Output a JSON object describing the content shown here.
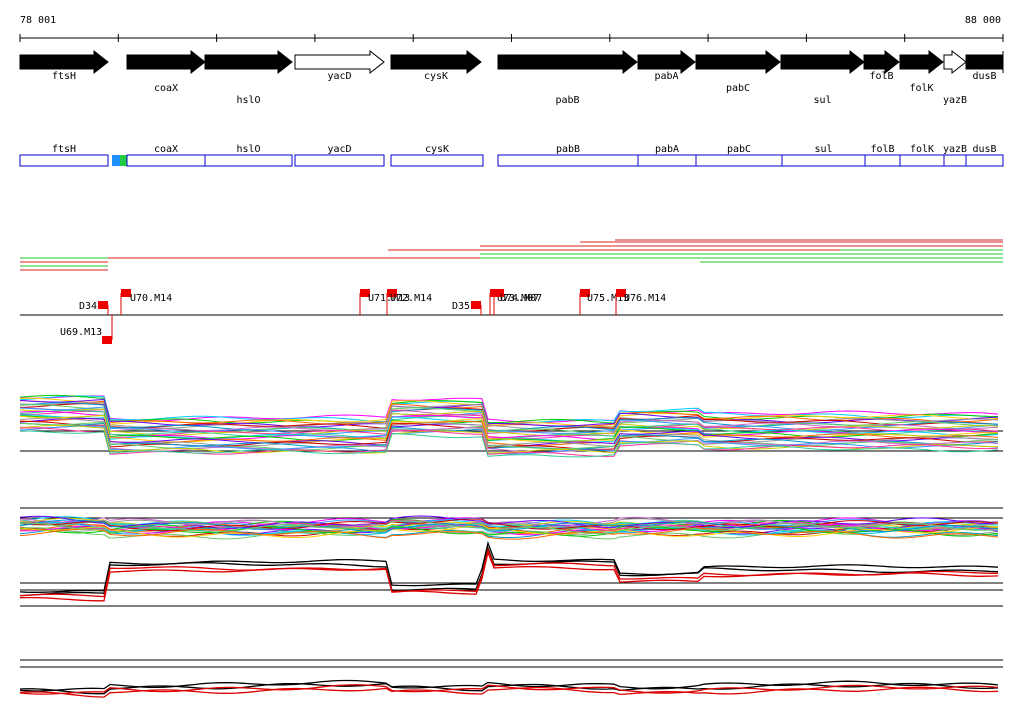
{
  "ruler": {
    "start": "78 001",
    "end": "88 000"
  },
  "genes": [
    {
      "label": "ftsH"
    },
    {
      "label": "coaX"
    },
    {
      "label": "hslO"
    },
    {
      "label": "yacD"
    },
    {
      "label": "cysK"
    },
    {
      "label": "pabB"
    },
    {
      "label": "pabA"
    },
    {
      "label": "pabC"
    },
    {
      "label": "sul"
    },
    {
      "label": "folB"
    },
    {
      "label": "folK"
    },
    {
      "label": "yazB"
    },
    {
      "label": "dusB"
    }
  ],
  "boxes": [
    {
      "label": "ftsH"
    },
    {
      "label": "coaX"
    },
    {
      "label": "hslO"
    },
    {
      "label": "yacD"
    },
    {
      "label": "cysK"
    },
    {
      "label": "pabB"
    },
    {
      "label": "pabA"
    },
    {
      "label": "pabC"
    },
    {
      "label": "sul"
    },
    {
      "label": "folB"
    },
    {
      "label": "folK"
    },
    {
      "label": "yazB"
    },
    {
      "label": "dusB"
    }
  ],
  "features": [
    {
      "label": "D34"
    },
    {
      "label": "U69.M13"
    },
    {
      "label": "U70.M14"
    },
    {
      "label": "U71.M13"
    },
    {
      "label": "U72.M14"
    },
    {
      "label": "D35"
    },
    {
      "label": "U73.M07"
    },
    {
      "label": "U74.M07"
    },
    {
      "label": "U75.M13"
    },
    {
      "label": "U76.M14"
    }
  ]
}
